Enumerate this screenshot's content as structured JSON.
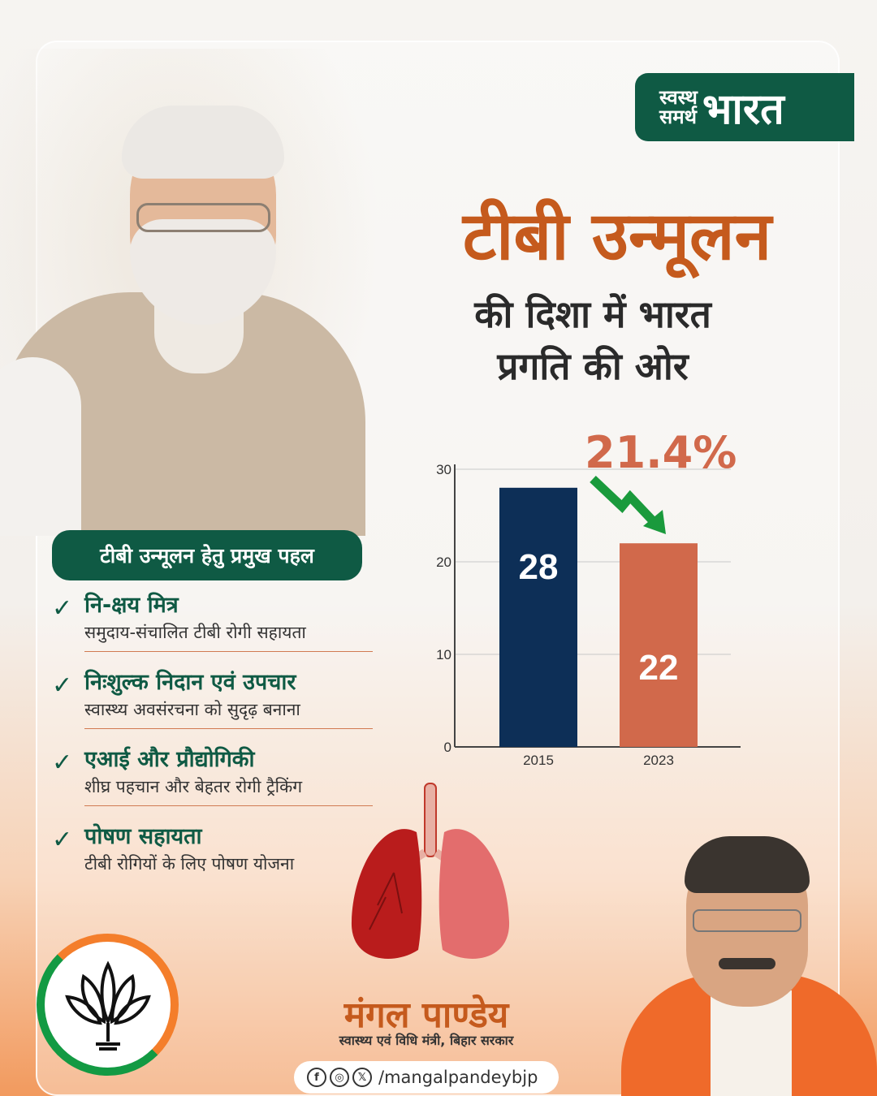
{
  "tag": {
    "small_line1": "स्वस्थ",
    "small_line2": "समर्थ",
    "big": "भारत"
  },
  "headline": "टीबी उन्मूलन",
  "subheadline_line1": "की दिशा में भारत",
  "subheadline_line2": "प्रगति की ओर",
  "chart_data": {
    "type": "bar",
    "categories": [
      "2015",
      "2023"
    ],
    "values": [
      28,
      22
    ],
    "bar_colors": [
      "#0d2f57",
      "#d1694b"
    ],
    "ylim": [
      0,
      30
    ],
    "yticks": [
      0,
      10,
      20,
      30
    ],
    "grid": true,
    "annotation": "21.4%",
    "annotation_color": "#d1694b",
    "arrow_color": "#1a9a3c",
    "title": "",
    "xlabel": "",
    "ylabel": ""
  },
  "initiatives": {
    "heading": "टीबी उन्मूलन हेतु प्रमुख पहल",
    "items": [
      {
        "title": "नि-क्षय मित्र",
        "desc": "समुदाय-संचालित टीबी रोगी सहायता"
      },
      {
        "title": "निःशुल्क निदान एवं उपचार",
        "desc": "स्वास्थ्य अवसंरचना को सुदृढ़ बनाना"
      },
      {
        "title": "एआई और प्रौद्योगिकी",
        "desc": "शीघ्र पहचान और बेहतर रोगी ट्रैकिंग"
      },
      {
        "title": "पोषण सहायता",
        "desc": "टीबी रोगियों के लिए पोषण योजना"
      }
    ],
    "check_glyph": "✓"
  },
  "minister": {
    "name": "मंगल पाण्डेय",
    "role": "स्वास्थ्य एवं विधि मंत्री, बिहार सरकार"
  },
  "social": {
    "facebook_glyph": "f",
    "instagram_glyph": "◎",
    "x_glyph": "𝕏",
    "handle": "/mangalpandeybjp"
  },
  "colors": {
    "green": "#0f5a44",
    "saffron": "#c55a1d",
    "navy": "#0d2f57",
    "coral": "#d1694b"
  }
}
